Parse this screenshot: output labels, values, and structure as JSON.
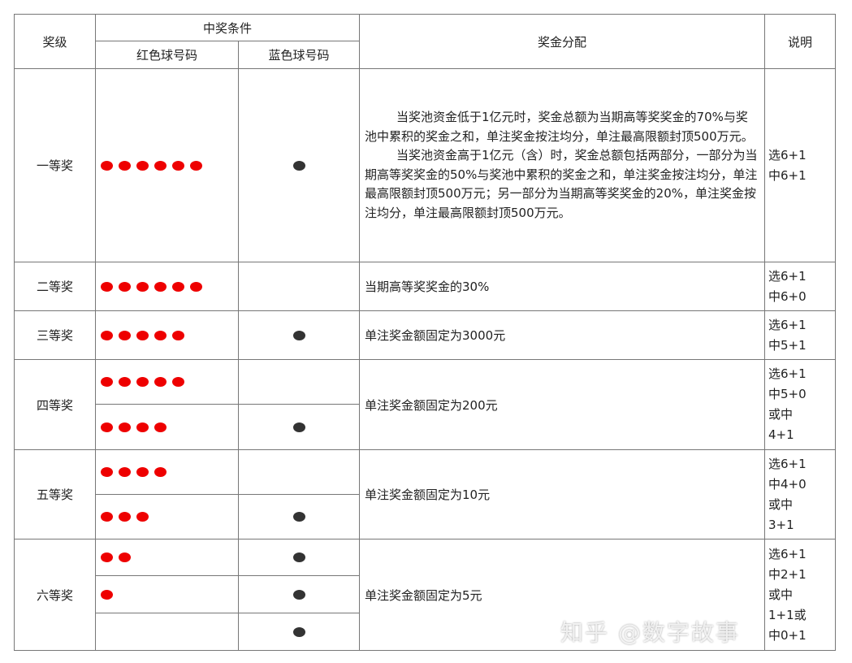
{
  "header": {
    "level": "奖级",
    "condition": "中奖条件",
    "red": "红色球号码",
    "blue": "蓝色球号码",
    "prize": "奖金分配",
    "note": "说明"
  },
  "rows": [
    {
      "level": "一等奖",
      "subs": [
        {
          "red": 6,
          "blue": 1
        }
      ],
      "prize_p1": "当奖池资金低于1亿元时，奖金总额为当期高等奖奖金的70%与奖池中累积的奖金之和，单注奖金按注均分，单注最高限额封顶500万元。",
      "prize_p2": "当奖池资金高于1亿元（含）时，奖金总额包括两部分，一部分为当期高等奖奖金的50%与奖池中累积的奖金之和，单注奖金按注均分，单注最高限额封顶500万元；另一部分为当期高等奖奖金的20%，单注奖金按注均分，单注最高限额封顶500万元。",
      "note": [
        "选6+1",
        "中6+1"
      ]
    },
    {
      "level": "二等奖",
      "subs": [
        {
          "red": 6,
          "blue": 0
        }
      ],
      "prize": "当期高等奖奖金的30%",
      "note": [
        "选6+1",
        "中6+0"
      ]
    },
    {
      "level": "三等奖",
      "subs": [
        {
          "red": 5,
          "blue": 1
        }
      ],
      "prize": "单注奖金额固定为3000元",
      "note": [
        "选6+1",
        "中5+1"
      ]
    },
    {
      "level": "四等奖",
      "subs": [
        {
          "red": 5,
          "blue": 0
        },
        {
          "red": 4,
          "blue": 1
        }
      ],
      "prize": "单注奖金额固定为200元",
      "note": [
        "选6+1",
        "中5+0",
        "或中",
        "4+1"
      ]
    },
    {
      "level": "五等奖",
      "subs": [
        {
          "red": 4,
          "blue": 0
        },
        {
          "red": 3,
          "blue": 1
        }
      ],
      "prize": "单注奖金额固定为10元",
      "note": [
        "选6+1",
        "中4+0",
        "或中",
        "3+1"
      ]
    },
    {
      "level": "六等奖",
      "subs": [
        {
          "red": 2,
          "blue": 1
        },
        {
          "red": 1,
          "blue": 1
        },
        {
          "red": 0,
          "blue": 1
        }
      ],
      "prize": "单注奖金额固定为5元",
      "note": [
        "选6+1",
        "中2+1",
        "或中",
        "1+1或",
        "中0+1"
      ]
    }
  ],
  "watermark": "知乎 @数字故事",
  "colors": {
    "red_ball": "#e00000",
    "blue_ball": "#333333"
  }
}
